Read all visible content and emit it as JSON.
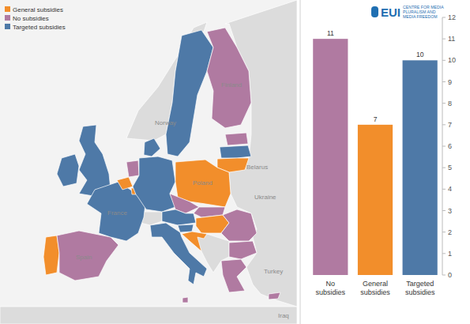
{
  "chart_data": [
    {
      "type": "map",
      "series": [
        {
          "name": "General subsidies",
          "color": "#f28e2b"
        },
        {
          "name": "No subsidies",
          "color": "#b07aa1"
        },
        {
          "name": "Targeted subsidies",
          "color": "#4e79a7"
        }
      ],
      "regions": [
        2,
        2,
        0,
        1,
        2,
        0,
        1,
        0,
        2,
        2,
        2,
        1,
        1,
        2,
        0,
        0,
        1,
        1,
        2,
        0,
        2,
        0,
        1,
        1,
        1,
        2,
        1,
        1
      ],
      "legend": "top-left",
      "annotations": [
        "Norway",
        "Belarus",
        "Ukraine",
        "Turkey",
        "Iraq",
        "Finland",
        "Poland",
        "France",
        "Spain"
      ]
    },
    {
      "type": "bar",
      "categories": [
        "No subsidies",
        "General subsidies",
        "Targeted subsidies"
      ],
      "values": [
        11,
        7,
        10
      ],
      "colors": [
        "#b07aa1",
        "#f28e2b",
        "#4e79a7"
      ],
      "ylim": [
        0,
        12
      ],
      "yticks": [
        0,
        1,
        2,
        3,
        4,
        5,
        6,
        7,
        8,
        9,
        10,
        11,
        12
      ],
      "data_labels": true,
      "annotations": [
        "EUI",
        "CENTRE FOR MEDIA PLURALISM AND MEDIA FREEDOM"
      ]
    }
  ]
}
